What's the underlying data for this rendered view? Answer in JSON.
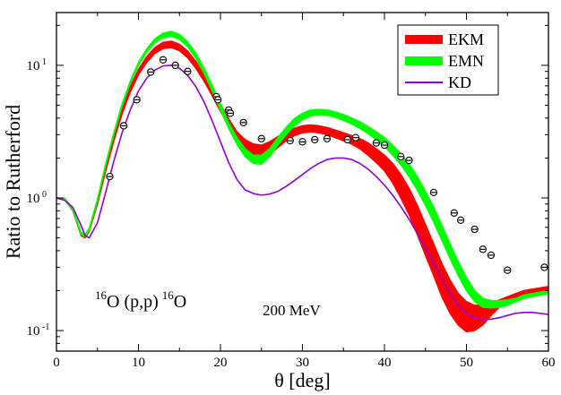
{
  "chart_data": {
    "type": "line",
    "xlabel": "θ [deg]",
    "ylabel": "Ratio to Rutherford",
    "xlim": [
      0,
      60
    ],
    "ylim": [
      0.07,
      25
    ],
    "yscale": "log",
    "x_ticks": [
      {
        "value": 0,
        "label": "0"
      },
      {
        "value": 10,
        "label": "10"
      },
      {
        "value": 20,
        "label": "20"
      },
      {
        "value": 30,
        "label": "30"
      },
      {
        "value": 40,
        "label": "40"
      },
      {
        "value": 50,
        "label": "50"
      },
      {
        "value": 60,
        "label": "60"
      }
    ],
    "y_ticks": [
      {
        "value": 0.1,
        "mantissa": "10",
        "exponent": "-1"
      },
      {
        "value": 1,
        "mantissa": "10",
        "exponent": "0"
      },
      {
        "value": 10,
        "mantissa": "10",
        "exponent": "1"
      }
    ],
    "legend": {
      "position": "top-right",
      "entries": [
        {
          "label": "EKM",
          "color": "#ff0000",
          "style": "band"
        },
        {
          "label": "EMN",
          "color": "#00ff00",
          "style": "band"
        },
        {
          "label": "KD",
          "color": "#9400d3",
          "style": "line"
        }
      ]
    },
    "annotations": {
      "reaction": {
        "sup_left": "16",
        "main": "O (p,p)",
        "sup_right": "16",
        "tail": "O"
      },
      "energy": "200 MeV"
    },
    "series": [
      {
        "name": "EKM",
        "type": "band",
        "color": "#ff0000",
        "x": [
          0,
          1,
          2,
          3,
          3.5,
          4,
          5,
          6,
          7,
          8,
          9,
          10,
          11,
          12,
          13,
          14,
          15,
          16,
          17,
          18,
          19,
          20,
          21,
          22,
          23,
          24,
          25,
          26,
          27,
          28,
          29,
          30,
          31,
          32,
          33,
          34,
          35,
          36,
          37,
          38,
          39,
          40,
          41,
          42,
          43,
          44,
          45,
          46,
          47,
          48,
          49,
          50,
          51,
          52,
          53,
          54,
          55,
          56,
          57,
          58,
          59,
          60
        ],
        "lower": [
          1.0,
          0.97,
          0.8,
          0.52,
          0.5,
          0.56,
          0.9,
          1.6,
          2.7,
          4.3,
          6.3,
          8.5,
          10.5,
          12.3,
          13.4,
          13.6,
          12.9,
          11.4,
          9.5,
          7.6,
          5.9,
          4.5,
          3.5,
          2.8,
          2.4,
          2.15,
          2.05,
          2.15,
          2.4,
          2.7,
          2.95,
          3.1,
          3.15,
          3.1,
          3.0,
          2.85,
          2.7,
          2.55,
          2.35,
          2.1,
          1.85,
          1.6,
          1.3,
          1.0,
          0.75,
          0.53,
          0.37,
          0.26,
          0.18,
          0.135,
          0.11,
          0.098,
          0.1,
          0.11,
          0.13,
          0.15,
          0.165,
          0.175,
          0.185,
          0.19,
          0.195,
          0.2
        ],
        "upper": [
          1.0,
          0.99,
          0.82,
          0.54,
          0.52,
          0.58,
          0.95,
          1.7,
          2.9,
          4.7,
          6.9,
          9.3,
          11.6,
          13.6,
          14.9,
          15.2,
          14.4,
          12.8,
          10.7,
          8.6,
          6.7,
          5.1,
          3.95,
          3.15,
          2.75,
          2.55,
          2.5,
          2.65,
          2.9,
          3.15,
          3.35,
          3.5,
          3.55,
          3.5,
          3.4,
          3.25,
          3.1,
          2.95,
          2.8,
          2.6,
          2.35,
          2.1,
          1.82,
          1.5,
          1.18,
          0.88,
          0.63,
          0.45,
          0.32,
          0.24,
          0.19,
          0.165,
          0.155,
          0.155,
          0.16,
          0.17,
          0.18,
          0.19,
          0.2,
          0.205,
          0.21,
          0.215
        ]
      },
      {
        "name": "EMN",
        "type": "band",
        "color": "#00ff00",
        "x": [
          0,
          1,
          2,
          3,
          3.5,
          4,
          5,
          6,
          7,
          8,
          9,
          10,
          11,
          12,
          13,
          14,
          15,
          16,
          17,
          18,
          19,
          20,
          21,
          22,
          23,
          24,
          25,
          26,
          27,
          28,
          29,
          30,
          31,
          32,
          33,
          34,
          35,
          36,
          37,
          38,
          39,
          40,
          41,
          42,
          43,
          44,
          45,
          46,
          47,
          48,
          49,
          50,
          51,
          52,
          53,
          54,
          55,
          56,
          57,
          58,
          59,
          60
        ],
        "lower": [
          1.0,
          0.97,
          0.81,
          0.53,
          0.51,
          0.57,
          0.95,
          1.75,
          3.0,
          4.9,
          7.3,
          10.0,
          12.6,
          14.8,
          16.2,
          16.6,
          15.7,
          13.8,
          11.3,
          8.7,
          6.4,
          4.6,
          3.35,
          2.55,
          2.05,
          1.82,
          1.8,
          2.05,
          2.5,
          3.0,
          3.5,
          3.9,
          4.15,
          4.25,
          4.2,
          4.05,
          3.85,
          3.6,
          3.35,
          3.05,
          2.75,
          2.45,
          2.1,
          1.78,
          1.45,
          1.15,
          0.88,
          0.66,
          0.48,
          0.35,
          0.26,
          0.2,
          0.165,
          0.15,
          0.148,
          0.15,
          0.155,
          0.165,
          0.175,
          0.18,
          0.185,
          0.19
        ],
        "upper": [
          1.0,
          0.99,
          0.83,
          0.55,
          0.53,
          0.59,
          0.98,
          1.8,
          3.1,
          5.1,
          7.6,
          10.5,
          13.3,
          15.8,
          17.5,
          18.0,
          17.1,
          15.0,
          12.3,
          9.5,
          7.0,
          5.1,
          3.7,
          2.85,
          2.35,
          2.1,
          2.1,
          2.35,
          2.85,
          3.4,
          3.95,
          4.35,
          4.6,
          4.65,
          4.6,
          4.45,
          4.25,
          4.0,
          3.75,
          3.45,
          3.15,
          2.85,
          2.5,
          2.15,
          1.8,
          1.45,
          1.12,
          0.85,
          0.62,
          0.45,
          0.33,
          0.25,
          0.2,
          0.175,
          0.168,
          0.168,
          0.17,
          0.175,
          0.185,
          0.19,
          0.195,
          0.2
        ]
      },
      {
        "name": "KD",
        "type": "line",
        "color": "#9400d3",
        "x": [
          0,
          1,
          2,
          3,
          3.5,
          4,
          5,
          6,
          7,
          8,
          9,
          10,
          11,
          12,
          13,
          14,
          15,
          16,
          17,
          18,
          19,
          20,
          21,
          22,
          23,
          24,
          25,
          26,
          27,
          28,
          29,
          30,
          31,
          32,
          33,
          34,
          35,
          36,
          37,
          38,
          39,
          40,
          41,
          42,
          43,
          44,
          45,
          46,
          47,
          48,
          49,
          50,
          51,
          52,
          53,
          54,
          55,
          56,
          57,
          58,
          59,
          60
        ],
        "values": [
          1.0,
          0.96,
          0.85,
          0.62,
          0.52,
          0.5,
          0.65,
          1.1,
          1.9,
          3.1,
          4.6,
          6.4,
          8.0,
          9.2,
          9.9,
          10.0,
          9.5,
          8.4,
          6.9,
          5.3,
          3.8,
          2.65,
          1.85,
          1.38,
          1.15,
          1.08,
          1.05,
          1.07,
          1.12,
          1.22,
          1.35,
          1.5,
          1.67,
          1.82,
          1.95,
          2.0,
          2.0,
          1.95,
          1.82,
          1.65,
          1.45,
          1.25,
          1.05,
          0.86,
          0.69,
          0.54,
          0.42,
          0.32,
          0.245,
          0.19,
          0.155,
          0.135,
          0.125,
          0.122,
          0.122,
          0.125,
          0.13,
          0.135,
          0.137,
          0.137,
          0.135,
          0.132
        ]
      },
      {
        "name": "data",
        "type": "scatter",
        "color": "#000000",
        "x": [
          6.5,
          8.2,
          9.8,
          11.5,
          13.0,
          14.5,
          16.0,
          19.5,
          19.7,
          21.0,
          21.2,
          22.8,
          25.0,
          28.5,
          30.0,
          31.5,
          33.0,
          35.5,
          36.5,
          39.0,
          40.0,
          42.0,
          43.0,
          46.0,
          48.5,
          49.3,
          51.0,
          52.0,
          53.0,
          55.0,
          59.5
        ],
        "values": [
          1.45,
          3.5,
          5.5,
          8.9,
          11.0,
          10.0,
          9.0,
          5.8,
          5.5,
          4.6,
          4.35,
          3.7,
          2.8,
          2.7,
          2.65,
          2.75,
          2.8,
          2.75,
          2.85,
          2.6,
          2.5,
          2.05,
          1.92,
          1.1,
          0.77,
          0.68,
          0.58,
          0.41,
          0.37,
          0.285,
          0.3
        ]
      }
    ]
  }
}
